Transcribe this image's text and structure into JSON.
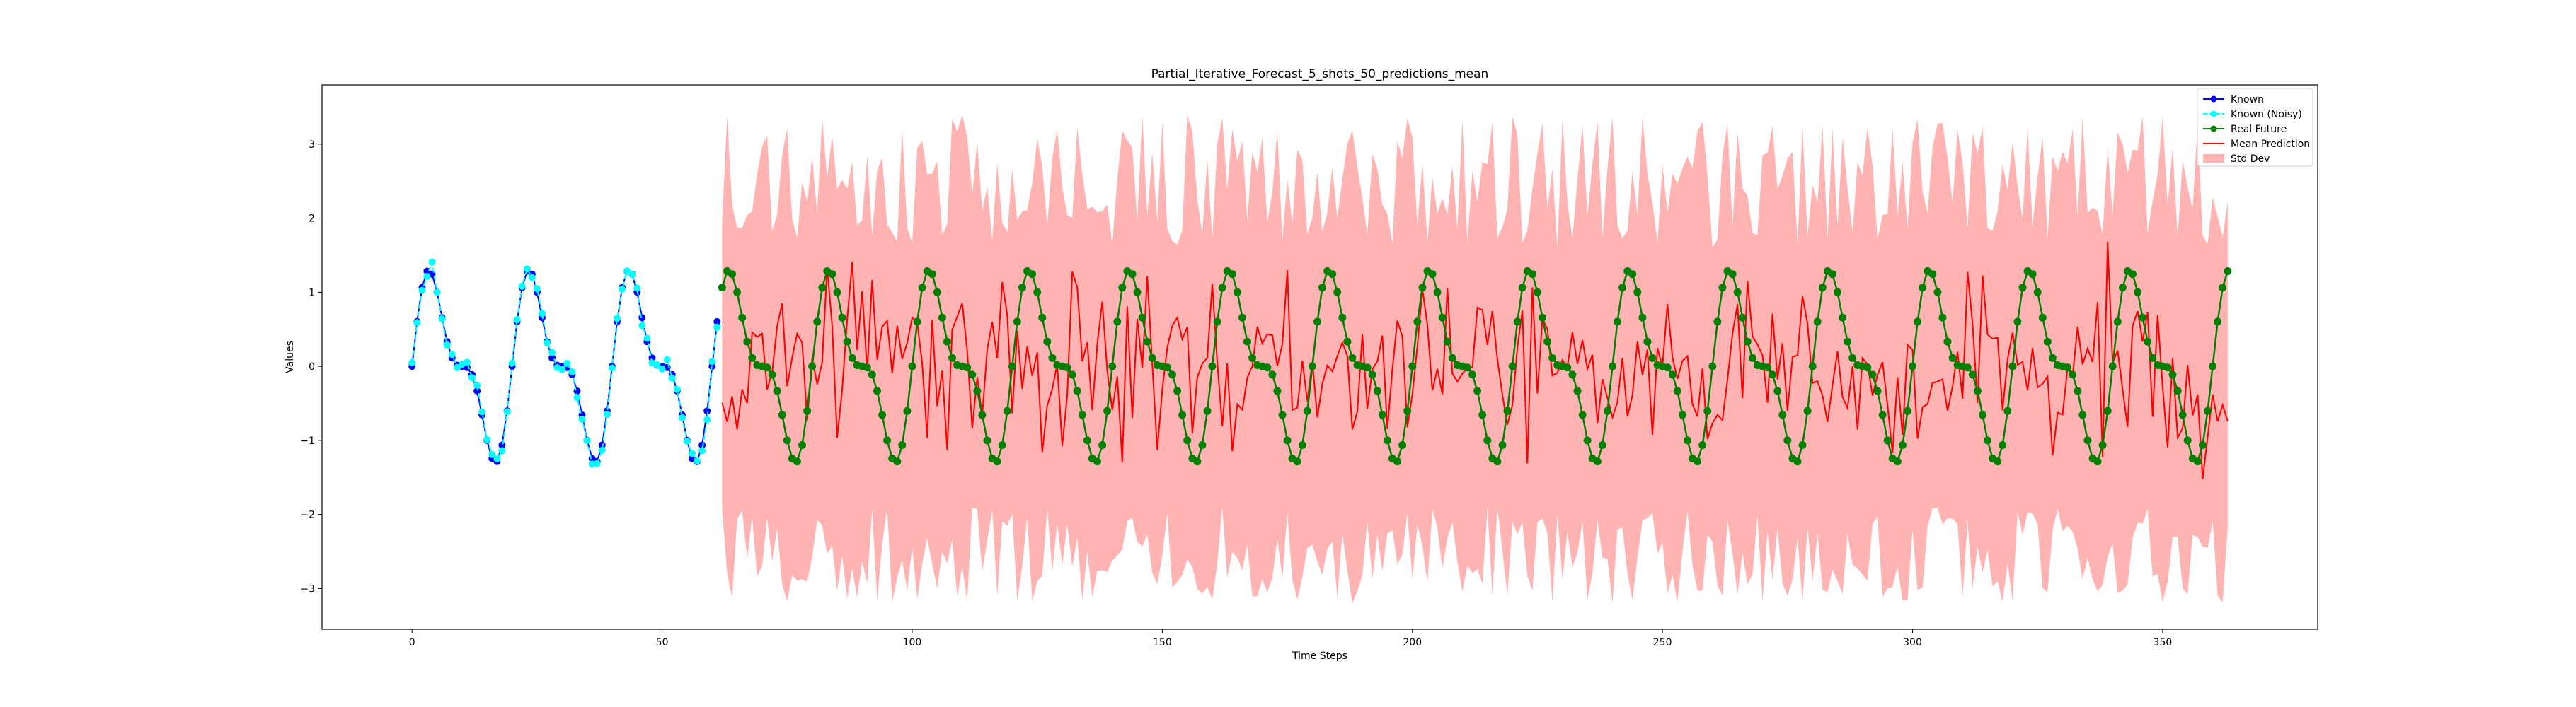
{
  "chart_data": {
    "type": "line",
    "title": "Partial_Iterative_Forecast_5_shots_50_predictions_mean",
    "xlabel": "Time Steps",
    "ylabel": "Values",
    "xlim": [
      -18,
      381
    ],
    "ylim": [
      -3.55,
      3.8
    ],
    "x_ticks": [
      0,
      50,
      100,
      150,
      200,
      250,
      300,
      350
    ],
    "y_ticks": [
      -3,
      -2,
      -1,
      0,
      1,
      2,
      3
    ],
    "legend_position": "top-right",
    "grid": false,
    "signal": {
      "formula": "sin(2*pi*t/20) + 0.5*sin(2*pi*t/10)",
      "known_range": [
        0,
        61
      ],
      "future_range": [
        62,
        363
      ]
    },
    "series": [
      {
        "name": "Known",
        "color": "#0000ff",
        "marker": "circle",
        "values_rule": "signal over known_range"
      },
      {
        "name": "Known (Noisy)",
        "color": "#00ffff",
        "marker": "circle",
        "linestyle": "dashed",
        "noise_std": 0.08,
        "values_rule": "signal plus noise over known_range"
      },
      {
        "name": "Real Future",
        "color": "#008000",
        "marker": "circle",
        "values_rule": "signal over future_range"
      },
      {
        "name": "Mean Prediction",
        "color": "#ff0000",
        "marker": "none",
        "noise_std": 0.6,
        "values_rule": "noisy mean over future_range"
      },
      {
        "name": "Std Dev",
        "color": "#ff8080",
        "type": "band",
        "band_low": [
          -1.9,
          -3.2
        ],
        "band_high": [
          1.6,
          3.4
        ],
        "values_rule": "mean plus/minus std over future_range"
      }
    ]
  }
}
